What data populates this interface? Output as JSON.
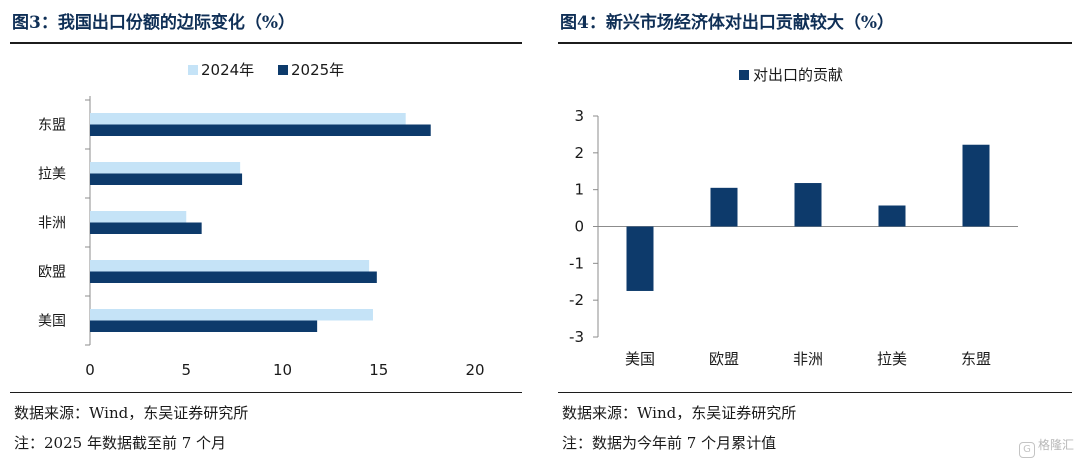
{
  "left": {
    "title": "图3：我国出口份额的边际变化（%）",
    "source": "数据来源：Wind，东吴证券研究所",
    "note": "注：2025 年数据截至前 7 个月"
  },
  "right": {
    "title": "图4：新兴市场经济体对出口贡献较大（%）",
    "source": "数据来源：Wind，东吴证券研究所",
    "note": "注：数据为今年前 7 个月累计值"
  },
  "watermark": {
    "text": "格隆汇",
    "logo": "G"
  },
  "colors": {
    "light": "#c5e3f7",
    "dark": "#0d3a6b"
  },
  "chart_data": [
    {
      "type": "bar",
      "orientation": "horizontal",
      "categories": [
        "东盟",
        "拉美",
        "非洲",
        "欧盟",
        "美国"
      ],
      "series": [
        {
          "name": "2024年",
          "values": [
            16.4,
            7.8,
            5.0,
            14.5,
            14.7
          ]
        },
        {
          "name": "2025年",
          "values": [
            17.7,
            7.9,
            5.8,
            14.9,
            11.8
          ]
        }
      ],
      "xlim": [
        0,
        20
      ],
      "ticks": [
        "0",
        "5",
        "10",
        "15",
        "20"
      ],
      "legend": "top-center"
    },
    {
      "type": "bar",
      "categories": [
        "美国",
        "欧盟",
        "非洲",
        "拉美",
        "东盟"
      ],
      "series": [
        {
          "name": "对出口的贡献",
          "values": [
            -1.75,
            1.05,
            1.18,
            0.57,
            2.22
          ]
        }
      ],
      "ylim": [
        -3,
        3
      ],
      "ticks": [
        "3",
        "2",
        "1",
        "0",
        "-1",
        "-2",
        "-3"
      ],
      "legend": "top-center"
    }
  ]
}
